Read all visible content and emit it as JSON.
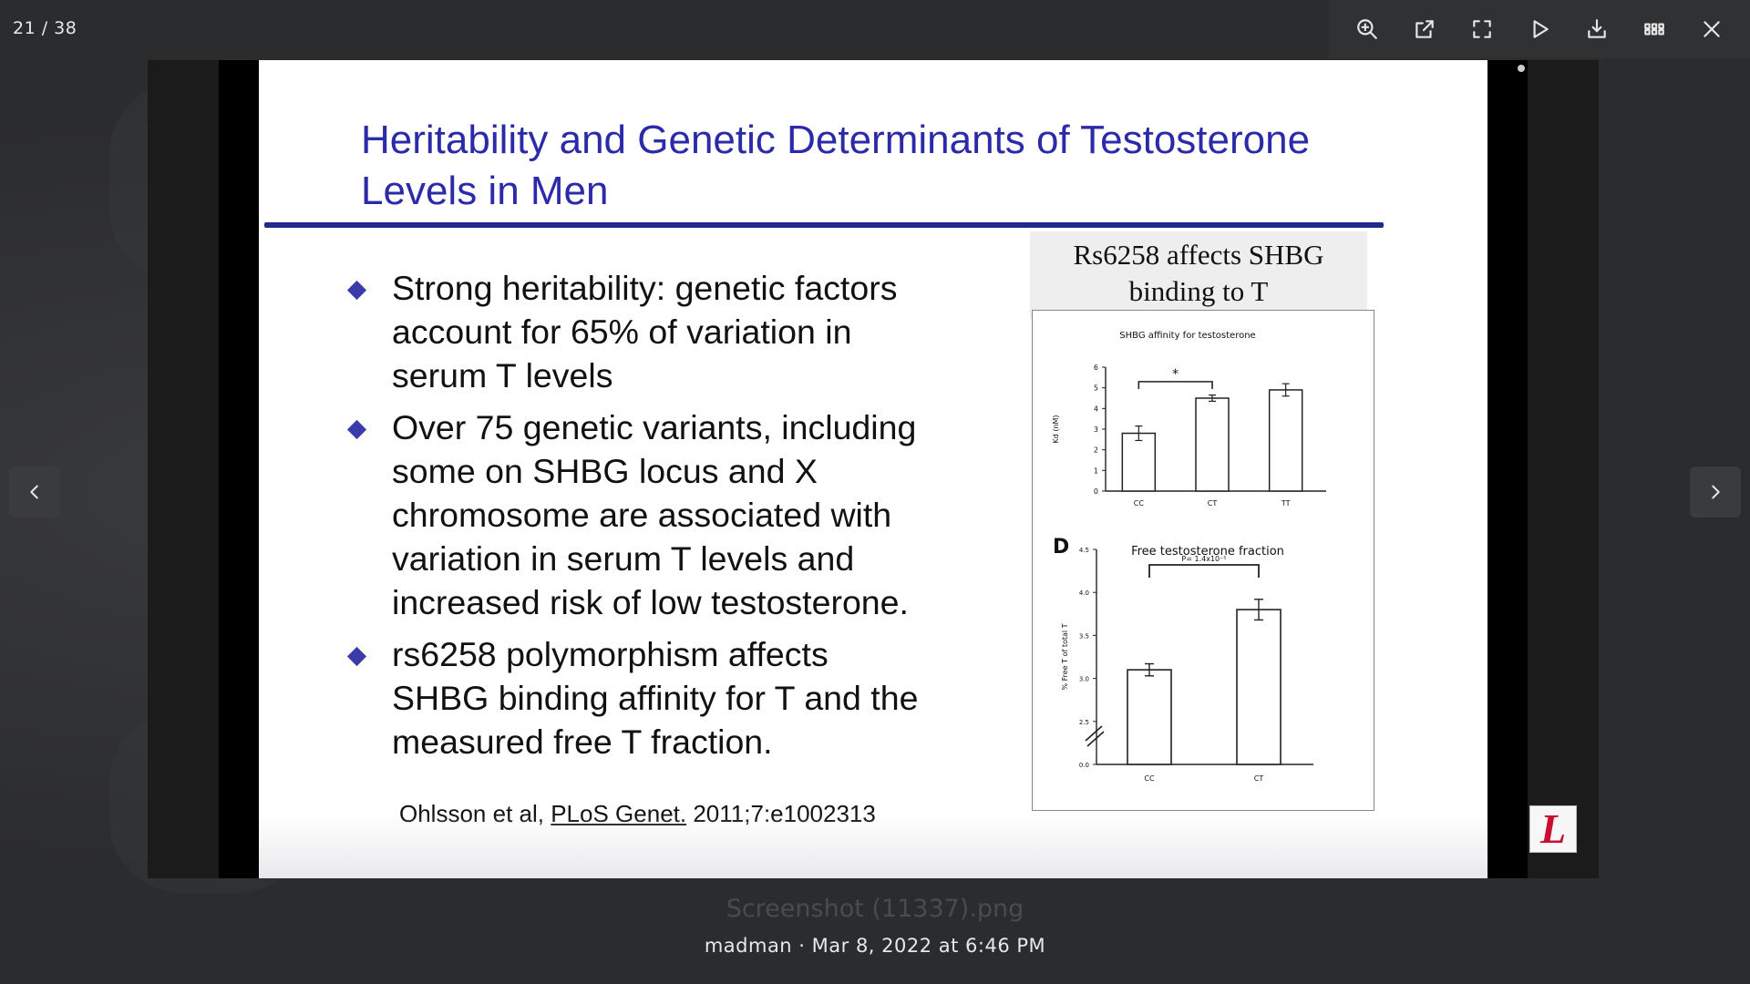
{
  "viewer": {
    "counter": "21 / 38",
    "toolbar": [
      {
        "name": "zoom-in",
        "icon": "zoom-in-icon"
      },
      {
        "name": "open-external",
        "icon": "external-link-icon"
      },
      {
        "name": "fullscreen",
        "icon": "fullscreen-icon"
      },
      {
        "name": "slideshow",
        "icon": "play-icon"
      },
      {
        "name": "download",
        "icon": "download-icon"
      },
      {
        "name": "grid-view",
        "icon": "grid-icon"
      },
      {
        "name": "close",
        "icon": "close-icon"
      }
    ],
    "filename": "Screenshot (11337).png",
    "caption": "madman · Mar 8, 2022 at 6:46 PM"
  },
  "slide": {
    "title_line1": "Heritability and Genetic Determinants of Testosterone",
    "title_line2": "Levels in Men",
    "bullets": [
      {
        "lines": [
          "Strong heritability: genetic factors",
          "account for 65% of variation in",
          "serum T levels"
        ]
      },
      {
        "lines": [
          "Over 75 genetic variants, including",
          "some on SHBG locus and X",
          "chromosome are associated with",
          "variation in serum T levels and",
          "increased risk of low testosterone."
        ]
      },
      {
        "lines": [
          "rs6258 polymorphism affects",
          "SHBG binding affinity for T and the",
          "measured free T fraction."
        ]
      }
    ],
    "citation_authors": "Ohlsson et al,",
    "citation_journal": "PLoS Genet.",
    "citation_ref": "2011;7:e1002313",
    "panel_title_line1": "Rs6258 affects SHBG",
    "panel_title_line2": "binding to T",
    "logo_letter": "L"
  },
  "chart_data": [
    {
      "type": "bar",
      "title": "SHBG affinity for testosterone",
      "ylabel": "Kd (nM)",
      "xlabel": "",
      "categories": [
        "CC",
        "CT",
        "TT"
      ],
      "values": [
        2.8,
        4.5,
        4.9
      ],
      "errors": [
        0.35,
        0.15,
        0.3
      ],
      "ylim": [
        0,
        6
      ],
      "yticks": [
        "0",
        "1",
        "2",
        "3",
        "4",
        "5",
        "6"
      ],
      "annotation": "*",
      "annotation_between": [
        "CC",
        "CT"
      ]
    },
    {
      "type": "bar",
      "panel_letter": "D",
      "title": "Free testosterone fraction",
      "ylabel": "% Free T of total T",
      "xlabel": "",
      "categories": [
        "CC",
        "CT"
      ],
      "values": [
        3.1,
        3.8
      ],
      "errors": [
        0.07,
        0.12
      ],
      "ylim": [
        2.0,
        4.5
      ],
      "yticks": [
        "0.0",
        "2.5",
        "3.0",
        "3.5",
        "4.0",
        "4.5"
      ],
      "axis_break": true,
      "annotation": "P= 1.4x10⁻⁵",
      "annotation_between": [
        "CC",
        "CT"
      ]
    }
  ]
}
